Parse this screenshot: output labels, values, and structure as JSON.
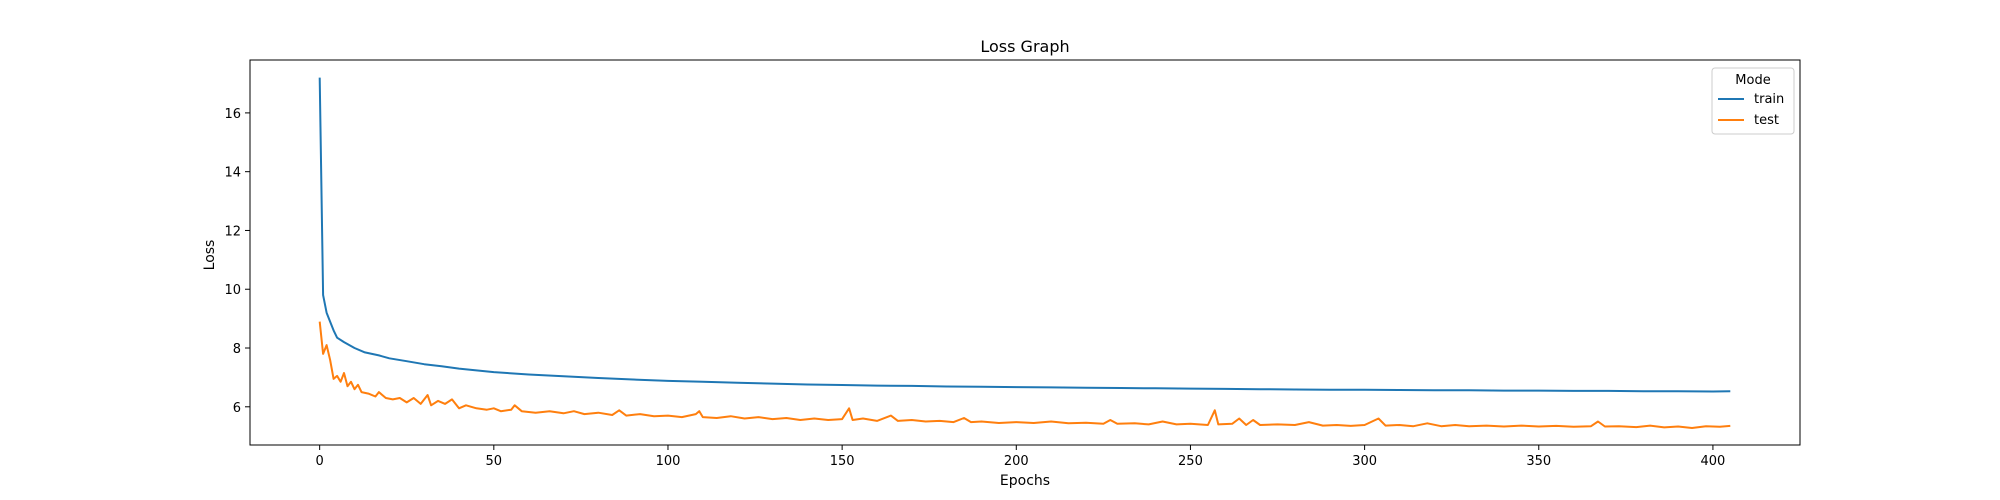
{
  "chart_data": {
    "type": "line",
    "title": "Loss Graph",
    "xlabel": "Epochs",
    "ylabel": "Loss",
    "xlim": [
      -20,
      425
    ],
    "ylim": [
      4.7,
      17.8
    ],
    "xticks": [
      0,
      50,
      100,
      150,
      200,
      250,
      300,
      350,
      400
    ],
    "yticks": [
      6,
      8,
      10,
      12,
      14,
      16
    ],
    "legend": {
      "title": "Mode",
      "placement": "top-right"
    },
    "series": [
      {
        "name": "train",
        "color": "#1f77b4",
        "points": [
          [
            0,
            17.2
          ],
          [
            1,
            9.8
          ],
          [
            2,
            9.2
          ],
          [
            3,
            8.9
          ],
          [
            4,
            8.6
          ],
          [
            5,
            8.35
          ],
          [
            7,
            8.2
          ],
          [
            10,
            8.0
          ],
          [
            13,
            7.85
          ],
          [
            17,
            7.75
          ],
          [
            20,
            7.65
          ],
          [
            25,
            7.55
          ],
          [
            30,
            7.45
          ],
          [
            35,
            7.38
          ],
          [
            40,
            7.3
          ],
          [
            50,
            7.18
          ],
          [
            60,
            7.1
          ],
          [
            70,
            7.04
          ],
          [
            80,
            6.98
          ],
          [
            90,
            6.93
          ],
          [
            100,
            6.88
          ],
          [
            110,
            6.85
          ],
          [
            120,
            6.82
          ],
          [
            130,
            6.79
          ],
          [
            140,
            6.76
          ],
          [
            150,
            6.74
          ],
          [
            160,
            6.72
          ],
          [
            170,
            6.71
          ],
          [
            180,
            6.69
          ],
          [
            190,
            6.68
          ],
          [
            200,
            6.67
          ],
          [
            210,
            6.66
          ],
          [
            220,
            6.65
          ],
          [
            230,
            6.64
          ],
          [
            240,
            6.63
          ],
          [
            250,
            6.62
          ],
          [
            260,
            6.61
          ],
          [
            270,
            6.6
          ],
          [
            280,
            6.59
          ],
          [
            290,
            6.58
          ],
          [
            300,
            6.58
          ],
          [
            310,
            6.57
          ],
          [
            320,
            6.56
          ],
          [
            330,
            6.56
          ],
          [
            340,
            6.55
          ],
          [
            350,
            6.55
          ],
          [
            360,
            6.54
          ],
          [
            370,
            6.54
          ],
          [
            380,
            6.53
          ],
          [
            390,
            6.53
          ],
          [
            400,
            6.52
          ],
          [
            405,
            6.53
          ]
        ]
      },
      {
        "name": "test",
        "color": "#ff7f0e",
        "points": [
          [
            0,
            8.9
          ],
          [
            1,
            7.8
          ],
          [
            2,
            8.1
          ],
          [
            3,
            7.6
          ],
          [
            4,
            6.95
          ],
          [
            5,
            7.05
          ],
          [
            6,
            6.85
          ],
          [
            7,
            7.15
          ],
          [
            8,
            6.7
          ],
          [
            9,
            6.85
          ],
          [
            10,
            6.6
          ],
          [
            11,
            6.75
          ],
          [
            12,
            6.5
          ],
          [
            14,
            6.45
          ],
          [
            16,
            6.35
          ],
          [
            17,
            6.5
          ],
          [
            19,
            6.3
          ],
          [
            21,
            6.25
          ],
          [
            23,
            6.3
          ],
          [
            25,
            6.15
          ],
          [
            27,
            6.3
          ],
          [
            29,
            6.1
          ],
          [
            31,
            6.4
          ],
          [
            32,
            6.05
          ],
          [
            34,
            6.2
          ],
          [
            36,
            6.1
          ],
          [
            38,
            6.25
          ],
          [
            40,
            5.95
          ],
          [
            42,
            6.05
          ],
          [
            45,
            5.95
          ],
          [
            48,
            5.9
          ],
          [
            50,
            5.95
          ],
          [
            52,
            5.85
          ],
          [
            55,
            5.9
          ],
          [
            56,
            6.05
          ],
          [
            58,
            5.85
          ],
          [
            62,
            5.8
          ],
          [
            66,
            5.85
          ],
          [
            70,
            5.78
          ],
          [
            73,
            5.85
          ],
          [
            76,
            5.75
          ],
          [
            80,
            5.8
          ],
          [
            84,
            5.72
          ],
          [
            86,
            5.88
          ],
          [
            88,
            5.7
          ],
          [
            92,
            5.75
          ],
          [
            96,
            5.68
          ],
          [
            100,
            5.7
          ],
          [
            104,
            5.65
          ],
          [
            108,
            5.75
          ],
          [
            109,
            5.85
          ],
          [
            110,
            5.65
          ],
          [
            114,
            5.62
          ],
          [
            118,
            5.68
          ],
          [
            122,
            5.6
          ],
          [
            126,
            5.65
          ],
          [
            130,
            5.58
          ],
          [
            134,
            5.62
          ],
          [
            138,
            5.55
          ],
          [
            142,
            5.6
          ],
          [
            146,
            5.55
          ],
          [
            150,
            5.58
          ],
          [
            152,
            5.95
          ],
          [
            153,
            5.55
          ],
          [
            156,
            5.6
          ],
          [
            160,
            5.52
          ],
          [
            164,
            5.7
          ],
          [
            166,
            5.52
          ],
          [
            170,
            5.55
          ],
          [
            174,
            5.5
          ],
          [
            178,
            5.52
          ],
          [
            182,
            5.48
          ],
          [
            185,
            5.62
          ],
          [
            187,
            5.48
          ],
          [
            190,
            5.5
          ],
          [
            195,
            5.45
          ],
          [
            200,
            5.48
          ],
          [
            205,
            5.45
          ],
          [
            210,
            5.5
          ],
          [
            215,
            5.44
          ],
          [
            220,
            5.46
          ],
          [
            225,
            5.42
          ],
          [
            227,
            5.55
          ],
          [
            229,
            5.42
          ],
          [
            234,
            5.44
          ],
          [
            238,
            5.4
          ],
          [
            242,
            5.5
          ],
          [
            246,
            5.4
          ],
          [
            250,
            5.42
          ],
          [
            255,
            5.38
          ],
          [
            257,
            5.88
          ],
          [
            258,
            5.4
          ],
          [
            262,
            5.42
          ],
          [
            264,
            5.6
          ],
          [
            266,
            5.38
          ],
          [
            268,
            5.55
          ],
          [
            270,
            5.38
          ],
          [
            275,
            5.4
          ],
          [
            280,
            5.38
          ],
          [
            284,
            5.48
          ],
          [
            288,
            5.36
          ],
          [
            292,
            5.38
          ],
          [
            296,
            5.35
          ],
          [
            300,
            5.38
          ],
          [
            304,
            5.6
          ],
          [
            306,
            5.36
          ],
          [
            310,
            5.38
          ],
          [
            314,
            5.34
          ],
          [
            318,
            5.44
          ],
          [
            322,
            5.34
          ],
          [
            326,
            5.38
          ],
          [
            330,
            5.34
          ],
          [
            335,
            5.36
          ],
          [
            340,
            5.33
          ],
          [
            345,
            5.36
          ],
          [
            350,
            5.33
          ],
          [
            355,
            5.35
          ],
          [
            360,
            5.32
          ],
          [
            365,
            5.34
          ],
          [
            367,
            5.5
          ],
          [
            369,
            5.33
          ],
          [
            373,
            5.34
          ],
          [
            378,
            5.31
          ],
          [
            382,
            5.36
          ],
          [
            386,
            5.3
          ],
          [
            390,
            5.33
          ],
          [
            394,
            5.28
          ],
          [
            398,
            5.34
          ],
          [
            402,
            5.32
          ],
          [
            405,
            5.35
          ]
        ]
      }
    ]
  }
}
